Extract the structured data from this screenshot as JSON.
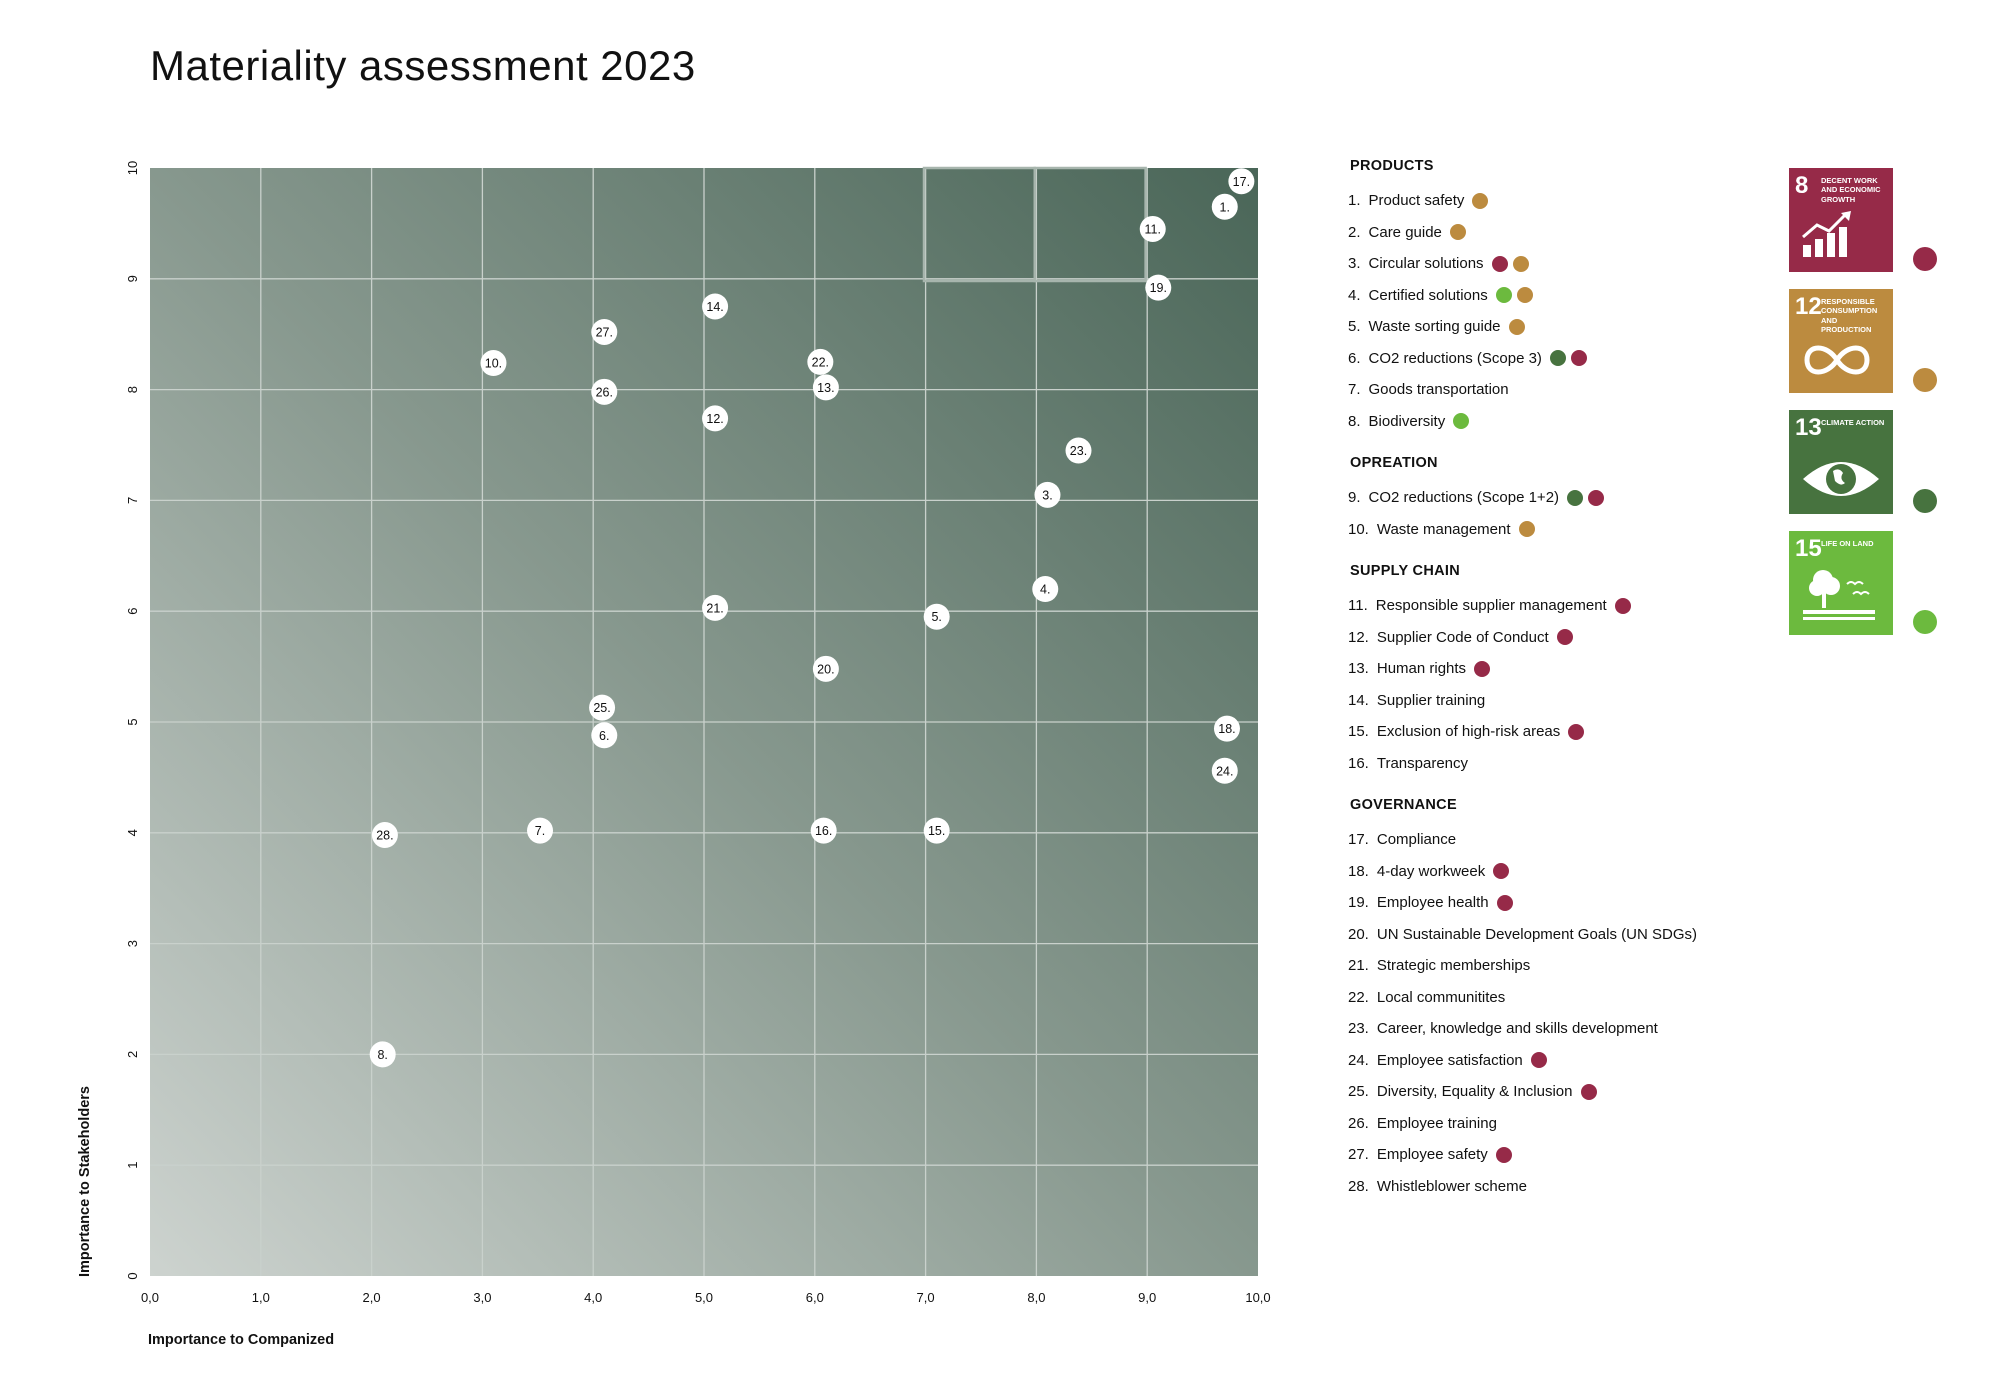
{
  "title": "Materiality assessment 2023",
  "colors": {
    "sdg8": "#962a48",
    "sdg12": "#bc8b3f",
    "sdg13": "#47733f",
    "sdg15": "#6cba3e"
  },
  "chart_data": {
    "type": "scatter",
    "xlabel": "Importance to Companized",
    "ylabel": "Importance to Stakeholders",
    "xlim": [
      0,
      10
    ],
    "ylim": [
      0,
      10
    ],
    "x_ticks": [
      "0,0",
      "1,0",
      "2,0",
      "3,0",
      "4,0",
      "5,0",
      "6,0",
      "7,0",
      "8,0",
      "9,0",
      "10,0"
    ],
    "y_ticks": [
      "0",
      "1",
      "2",
      "3",
      "4",
      "5",
      "6",
      "7",
      "8",
      "9",
      "10"
    ],
    "grid": true,
    "points": [
      {
        "label": "1.",
        "x": 9.7,
        "y": 9.65
      },
      {
        "label": "3.",
        "x": 8.1,
        "y": 7.05
      },
      {
        "label": "4.",
        "x": 8.08,
        "y": 6.2
      },
      {
        "label": "5.",
        "x": 7.1,
        "y": 5.95
      },
      {
        "label": "6.",
        "x": 4.1,
        "y": 4.88
      },
      {
        "label": "7.",
        "x": 3.52,
        "y": 4.02
      },
      {
        "label": "8.",
        "x": 2.1,
        "y": 2.0
      },
      {
        "label": "10.",
        "x": 3.1,
        "y": 8.24
      },
      {
        "label": "11.",
        "x": 9.05,
        "y": 9.45
      },
      {
        "label": "12.",
        "x": 5.1,
        "y": 7.74
      },
      {
        "label": "13.",
        "x": 6.1,
        "y": 8.02
      },
      {
        "label": "14.",
        "x": 5.1,
        "y": 8.75
      },
      {
        "label": "15.",
        "x": 7.1,
        "y": 4.02
      },
      {
        "label": "16.",
        "x": 6.08,
        "y": 4.02
      },
      {
        "label": "17.",
        "x": 9.85,
        "y": 9.88
      },
      {
        "label": "18.",
        "x": 9.72,
        "y": 4.94
      },
      {
        "label": "19.",
        "x": 9.1,
        "y": 8.92
      },
      {
        "label": "20.",
        "x": 6.1,
        "y": 5.48
      },
      {
        "label": "21.",
        "x": 5.1,
        "y": 6.03
      },
      {
        "label": "22.",
        "x": 6.05,
        "y": 8.25
      },
      {
        "label": "23.",
        "x": 8.38,
        "y": 7.45
      },
      {
        "label": "24.",
        "x": 9.7,
        "y": 4.56
      },
      {
        "label": "25.",
        "x": 4.08,
        "y": 5.13
      },
      {
        "label": "26.",
        "x": 4.1,
        "y": 7.98
      },
      {
        "label": "27.",
        "x": 4.1,
        "y": 8.52
      },
      {
        "label": "28.",
        "x": 2.12,
        "y": 3.98
      }
    ]
  },
  "legend": [
    {
      "title": "PRODUCTS",
      "items": [
        {
          "num": "1.",
          "label": "Product safety",
          "dots": [
            "sdg12"
          ]
        },
        {
          "num": "2.",
          "label": "Care guide",
          "dots": [
            "sdg12"
          ]
        },
        {
          "num": "3.",
          "label": "Circular solutions",
          "dots": [
            "sdg8",
            "sdg12"
          ]
        },
        {
          "num": "4.",
          "label": "Certified solutions",
          "dots": [
            "sdg15",
            "sdg12"
          ]
        },
        {
          "num": "5.",
          "label": "Waste sorting guide",
          "dots": [
            "sdg12"
          ]
        },
        {
          "num": "6.",
          "label": "CO2 reductions (Scope 3)",
          "dots": [
            "sdg13",
            "sdg8"
          ]
        },
        {
          "num": "7.",
          "label": "Goods transportation",
          "dots": []
        },
        {
          "num": "8.",
          "label": "Biodiversity",
          "dots": [
            "sdg15"
          ]
        }
      ]
    },
    {
      "title": "OPREATION",
      "items": [
        {
          "num": "9.",
          "label": "CO2 reductions (Scope 1+2)",
          "dots": [
            "sdg13",
            "sdg8"
          ]
        },
        {
          "num": "10.",
          "label": "Waste management",
          "dots": [
            "sdg12"
          ]
        }
      ]
    },
    {
      "title": "SUPPLY CHAIN",
      "items": [
        {
          "num": "11.",
          "label": "Responsible supplier management",
          "dots": [
            "sdg8"
          ]
        },
        {
          "num": "12.",
          "label": "Supplier Code of Conduct",
          "dots": [
            "sdg8"
          ]
        },
        {
          "num": "13.",
          "label": "Human rights",
          "dots": [
            "sdg8"
          ]
        },
        {
          "num": "14.",
          "label": "Supplier training",
          "dots": []
        },
        {
          "num": "15.",
          "label": "Exclusion of high-risk areas",
          "dots": [
            "sdg8"
          ]
        },
        {
          "num": "16.",
          "label": "Transparency",
          "dots": []
        }
      ]
    },
    {
      "title": "GOVERNANCE",
      "items": [
        {
          "num": "17.",
          "label": "Compliance",
          "dots": []
        },
        {
          "num": "18.",
          "label": "4-day workweek",
          "dots": [
            "sdg8"
          ]
        },
        {
          "num": "19.",
          "label": "Employee health",
          "dots": [
            "sdg8"
          ]
        },
        {
          "num": "20.",
          "label": "UN Sustainable Development Goals (UN SDGs)",
          "dots": []
        },
        {
          "num": "21.",
          "label": "Strategic memberships",
          "dots": []
        },
        {
          "num": "22.",
          "label": "Local communitites",
          "dots": []
        },
        {
          "num": "23.",
          "label": "Career, knowledge and skills development",
          "dots": []
        },
        {
          "num": "24.",
          "label": "Employee satisfaction",
          "dots": [
            "sdg8"
          ]
        },
        {
          "num": "25.",
          "label": "Diversity, Equality & Inclusion",
          "dots": [
            "sdg8"
          ]
        },
        {
          "num": "26.",
          "label": "Employee training",
          "dots": []
        },
        {
          "num": "27.",
          "label": "Employee safety",
          "dots": [
            "sdg8"
          ]
        },
        {
          "num": "28.",
          "label": "Whistleblower scheme",
          "dots": []
        }
      ]
    }
  ],
  "sdgs": [
    {
      "key": "sdg8",
      "number": "8",
      "text": "DECENT WORK AND ECONOMIC GROWTH",
      "icon": "growth-chart-icon"
    },
    {
      "key": "sdg12",
      "number": "12",
      "text": "RESPONSIBLE CONSUMPTION AND PRODUCTION",
      "icon": "infinity-icon"
    },
    {
      "key": "sdg13",
      "number": "13",
      "text": "CLIMATE ACTION",
      "icon": "earth-eye-icon"
    },
    {
      "key": "sdg15",
      "number": "15",
      "text": "LIFE ON LAND",
      "icon": "tree-icon"
    }
  ]
}
